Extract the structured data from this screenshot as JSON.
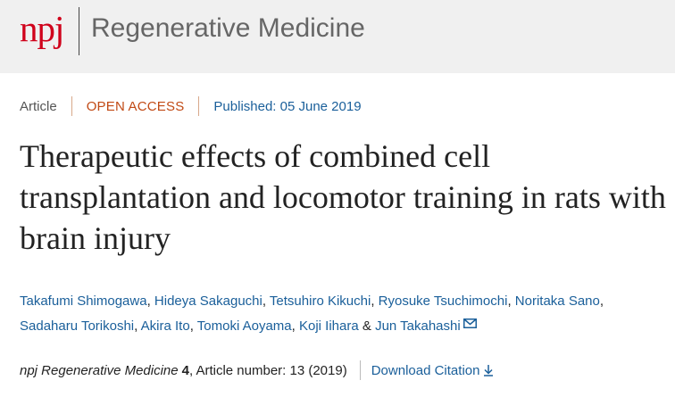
{
  "header": {
    "logo_mark": "npj",
    "journal_name": "Regenerative Medicine"
  },
  "article_meta": {
    "type": "Article",
    "access": "OPEN ACCESS",
    "published": "Published: 05 June 2019"
  },
  "title": "Therapeutic effects of combined cell transplantation and locomotor training in rats with brain injury",
  "authors": [
    "Takafumi Shimogawa",
    "Hideya Sakaguchi",
    "Tetsuhiro Kikuchi",
    "Ryosuke Tsuchimochi",
    "Noritaka Sano",
    "Sadaharu Torikoshi",
    "Akira Ito",
    "Tomoki Aoyama",
    "Koji Iihara",
    "Jun Takahashi"
  ],
  "authors_separator": ",",
  "authors_last_separator": "&",
  "corresponding_icon": "envelope-icon",
  "citation": {
    "journal": "npj Regenerative Medicine",
    "volume": "4",
    "article_number": ", Article number: 13 (2019)",
    "download_label": "Download Citation",
    "download_icon": "download-arrow-icon"
  },
  "colors": {
    "brand_red": "#d0021b",
    "link_blue": "#1a5f9a",
    "access_orange": "#c14a15",
    "header_bg": "#f0f0f0"
  }
}
